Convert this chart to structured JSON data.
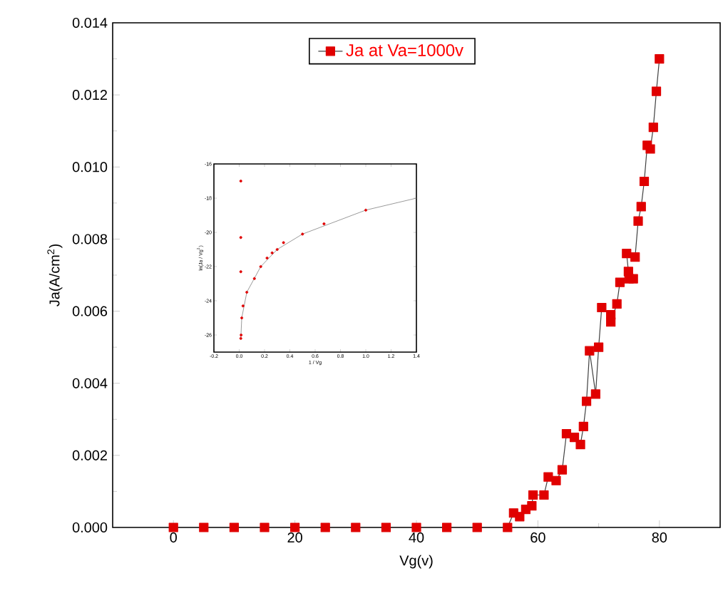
{
  "chart_data": [
    {
      "type": "line",
      "xlabel": "Vg(v)",
      "ylabel": "Ja(A/cm$^{2}$)",
      "x": [
        0,
        5,
        10,
        15,
        20,
        25,
        30,
        35,
        40,
        45,
        50,
        55,
        56,
        57,
        58,
        59,
        59.2,
        61,
        61.7,
        63,
        64,
        64.7,
        66,
        67,
        67.5,
        68,
        68.5,
        69.5,
        70,
        70.5,
        72,
        72,
        73,
        73.5,
        75,
        75.7,
        74.9,
        74.6,
        76,
        76.5,
        77,
        77.5,
        78,
        78.5,
        79,
        79.5,
        80
      ],
      "series": [
        {
          "name": "Ja at Va=1000v",
          "color": "#e00000",
          "values": [
            0,
            0,
            0,
            0,
            0,
            0,
            0,
            0,
            0,
            0,
            0,
            0,
            0.0004,
            0.0003,
            0.0005,
            0.0006,
            0.0009,
            0.0009,
            0.0014,
            0.0013,
            0.0016,
            0.0026,
            0.0025,
            0.0023,
            0.0028,
            0.0035,
            0.0049,
            0.0037,
            0.005,
            0.0061,
            0.0059,
            0.0057,
            0.0062,
            0.0068,
            0.0069,
            0.0069,
            0.0071,
            0.0076,
            0.0075,
            0.0085,
            0.0089,
            0.0096,
            0.0106,
            0.0105,
            0.0111,
            0.0121,
            0.013
          ]
        }
      ],
      "xlim": [
        -10,
        90
      ],
      "xticks": [
        0,
        20,
        40,
        60,
        80
      ],
      "ylim": [
        0,
        0.014
      ],
      "yticks": [
        {
          "value": 0,
          "label": "0.000"
        },
        {
          "value": 0.002,
          "label": "0.002"
        },
        {
          "value": 0.004,
          "label": "0.004"
        },
        {
          "value": 0.006,
          "label": "0.006"
        },
        {
          "value": 0.008,
          "label": "0.008"
        },
        {
          "value": 0.01,
          "label": "0.010"
        },
        {
          "value": 0.012,
          "label": "0.012"
        },
        {
          "value": 0.014,
          "label": "0.014"
        }
      ],
      "marker": "square",
      "legend": "top",
      "grid": false
    },
    {
      "type": "scatter",
      "xlabel": "1 / Vg",
      "ylabel": "ln(Ja / Vg$^{2}$)",
      "series": [
        {
          "color": "#e00000",
          "x": [
            1.0,
            0.67,
            0.5,
            0.35,
            0.3,
            0.26,
            0.22,
            0.17,
            0.12,
            0.06,
            0.03,
            0.02,
            0.015,
            0.0125,
            0.0125,
            0.0125,
            0.0125
          ],
          "values": [
            -18.7,
            -19.5,
            -20.1,
            -20.6,
            -21.0,
            -21.2,
            -21.5,
            -22.0,
            -22.7,
            -23.5,
            -24.3,
            -25.0,
            -26.0,
            -26.2,
            -22.3,
            -20.3,
            -17.0
          ]
        },
        {
          "type": "line",
          "marker": "none",
          "color": "#808080",
          "x": [
            0.0125,
            0.02,
            0.06,
            0.17,
            0.3,
            0.5,
            1.0,
            1.4
          ],
          "values": [
            -26.2,
            -25.0,
            -23.5,
            -22.0,
            -21.0,
            -20.1,
            -18.7,
            -18.0
          ]
        }
      ],
      "xlim": [
        -0.2,
        1.4
      ],
      "xticks": [
        {
          "value": -0.2,
          "label": "-0.2"
        },
        {
          "value": 0,
          "label": "0.0"
        },
        {
          "value": 0.2,
          "label": "0.2"
        },
        {
          "value": 0.4,
          "label": "0.4"
        },
        {
          "value": 0.6,
          "label": "0.6"
        },
        {
          "value": 0.8,
          "label": "0.8"
        },
        {
          "value": 1.0,
          "label": "1.0"
        },
        {
          "value": 1.2,
          "label": "1.2"
        },
        {
          "value": 1.4,
          "label": "1.4"
        }
      ],
      "ylim": [
        -27,
        -16
      ],
      "yticks": [
        -26,
        -24,
        -22,
        -20,
        -18,
        -16
      ],
      "marker": "circle"
    }
  ]
}
